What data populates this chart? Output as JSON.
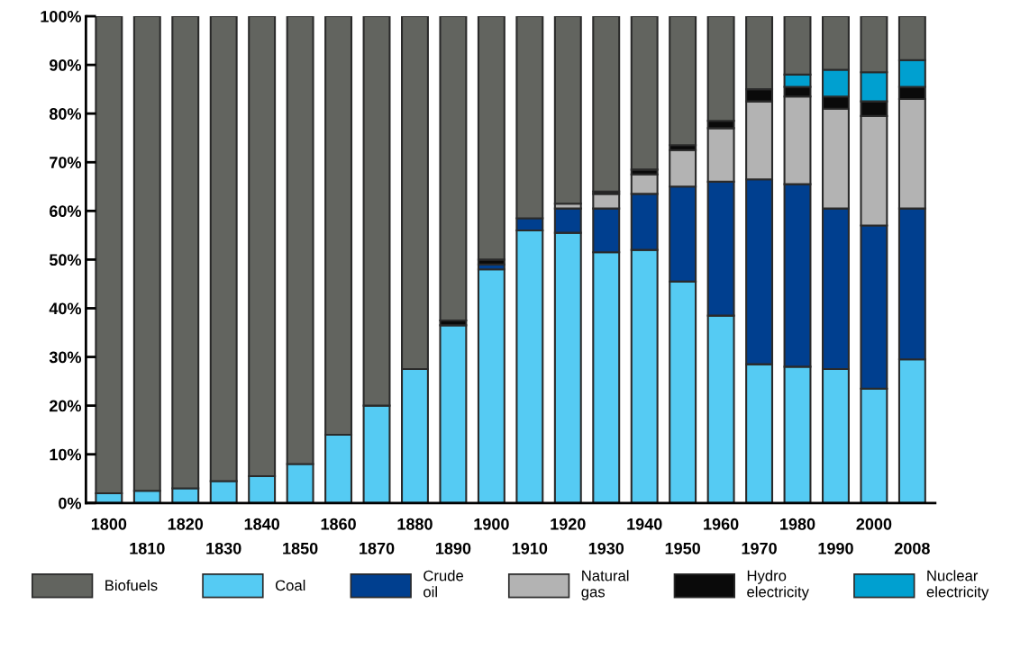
{
  "chart_data": {
    "type": "bar",
    "stacked": true,
    "categories": [
      "1800",
      "1810",
      "1820",
      "1830",
      "1840",
      "1850",
      "1860",
      "1870",
      "1880",
      "1890",
      "1900",
      "1910",
      "1920",
      "1930",
      "1940",
      "1950",
      "1960",
      "1970",
      "1980",
      "1990",
      "2000",
      "2008"
    ],
    "series": [
      {
        "name": "Coal",
        "color": "#55cbf3",
        "values": [
          2,
          2.5,
          3,
          4.5,
          5.5,
          8,
          14,
          20,
          27.5,
          36.5,
          48,
          56,
          55.5,
          51.5,
          52,
          45.5,
          38.5,
          28.5,
          28,
          27.5,
          23.5,
          29.5
        ]
      },
      {
        "name": "Crude oil",
        "color": "#003f8f",
        "values": [
          0,
          0,
          0,
          0,
          0,
          0,
          0,
          0,
          0,
          null,
          1,
          2.5,
          5,
          9,
          11.5,
          19.5,
          27.5,
          38,
          37.5,
          33,
          33.5,
          31
        ]
      },
      {
        "name": "Natural gas",
        "color": "#b3b3b3",
        "values": [
          0,
          0,
          0,
          0,
          0,
          0,
          0,
          0,
          0,
          0,
          0,
          null,
          1,
          3,
          4,
          7.5,
          11,
          16,
          18,
          20.5,
          22.5,
          22.5
        ]
      },
      {
        "name": "Hydro electricity",
        "color": "#0a0a0a",
        "values": [
          0,
          0,
          0,
          0,
          0,
          0,
          0,
          0,
          0,
          1,
          1,
          null,
          null,
          0.5,
          1,
          1,
          1.5,
          2.5,
          2,
          2.5,
          3,
          2.5
        ]
      },
      {
        "name": "Nuclear electricity",
        "color": "#00a0d0",
        "values": [
          0,
          0,
          0,
          0,
          0,
          0,
          0,
          0,
          0,
          0,
          0,
          0,
          0,
          0,
          0,
          0,
          0,
          0,
          2.5,
          5.5,
          6,
          5.5
        ]
      },
      {
        "name": "Biofuels",
        "color": "#62645f",
        "values": [
          98,
          97.5,
          97,
          95.5,
          94.5,
          92,
          86,
          80,
          72.5,
          62.5,
          50,
          41.5,
          38.5,
          36,
          31.5,
          26.5,
          21.5,
          15,
          12,
          11,
          11.5,
          9
        ]
      }
    ],
    "ylim": [
      0,
      100
    ],
    "yticks": [
      {
        "value": 0,
        "label": "0%"
      },
      {
        "value": 10,
        "label": "10%"
      },
      {
        "value": 20,
        "label": "20%"
      },
      {
        "value": 30,
        "label": "30%"
      },
      {
        "value": 40,
        "label": "40%"
      },
      {
        "value": 50,
        "label": "50%"
      },
      {
        "value": 60,
        "label": "60%"
      },
      {
        "value": 70,
        "label": "70%"
      },
      {
        "value": 80,
        "label": "80%"
      },
      {
        "value": 90,
        "label": "90%"
      },
      {
        "value": 100,
        "label": "100%"
      }
    ],
    "grid": false,
    "legend": "bottom"
  }
}
